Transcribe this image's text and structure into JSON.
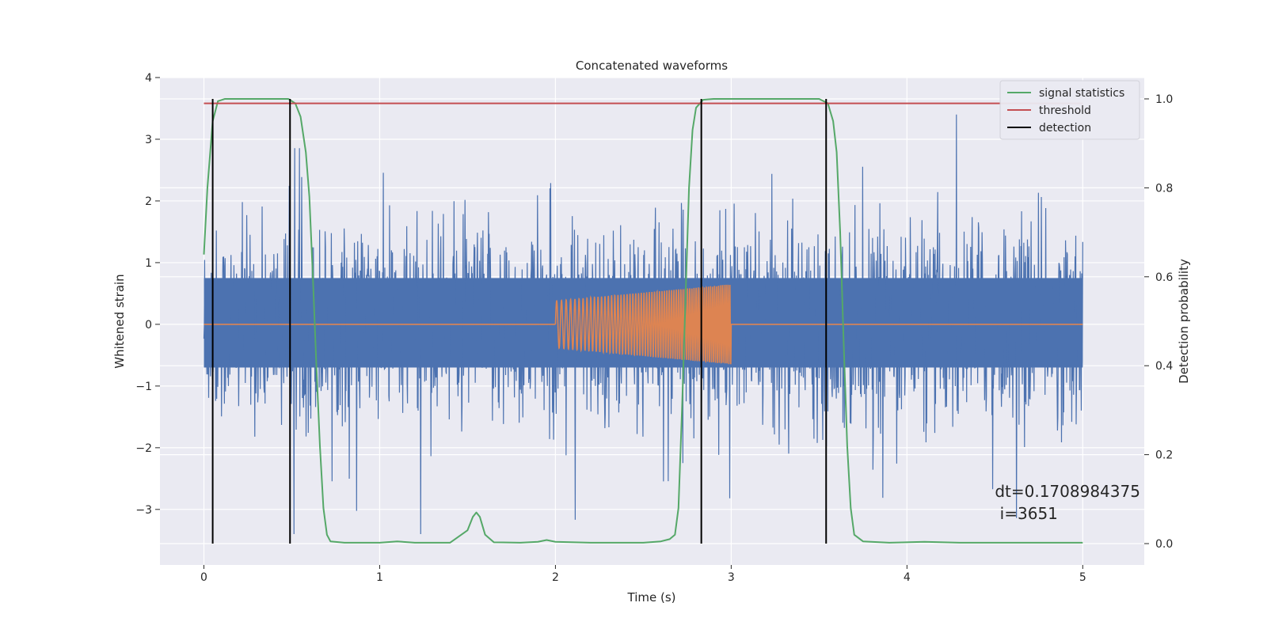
{
  "chart_data": {
    "type": "line",
    "title": "Concatenated waveforms",
    "xlabel": "Time (s)",
    "ylabel": "Whitened strain",
    "y2label": "Detection probability",
    "xlim": [
      -0.25,
      5.35
    ],
    "ylim": [
      -3.9,
      4.0
    ],
    "y2lim": [
      -0.048,
      1.048
    ],
    "x_ticks": [
      0,
      1,
      2,
      3,
      4,
      5
    ],
    "y_ticks": [
      -3,
      -2,
      -1,
      0,
      1,
      2,
      3,
      4
    ],
    "y2_ticks": [
      0.0,
      0.2,
      0.4,
      0.6,
      0.8,
      1.0
    ],
    "grid": true,
    "legend_position": "top-right",
    "colors": {
      "strain": "#4c72b0",
      "injection": "#dd8452",
      "signal_statistics": "#55a868",
      "threshold": "#c44e52",
      "detection": "#000000",
      "background": "#eaeaf2"
    },
    "series": [
      {
        "name": "signal statistics",
        "axis": "right",
        "x": [
          0.0,
          0.02,
          0.05,
          0.08,
          0.12,
          0.2,
          0.4,
          0.48,
          0.52,
          0.55,
          0.58,
          0.6,
          0.62,
          0.64,
          0.66,
          0.68,
          0.7,
          0.72,
          0.8,
          1.0,
          1.1,
          1.2,
          1.4,
          1.5,
          1.53,
          1.55,
          1.57,
          1.6,
          1.65,
          1.8,
          1.9,
          1.95,
          2.0,
          2.2,
          2.5,
          2.6,
          2.65,
          2.68,
          2.7,
          2.72,
          2.74,
          2.76,
          2.78,
          2.8,
          2.84,
          2.9,
          3.0,
          3.3,
          3.5,
          3.55,
          3.58,
          3.6,
          3.62,
          3.64,
          3.66,
          3.68,
          3.7,
          3.75,
          3.9,
          4.1,
          4.3,
          5.0
        ],
        "values": [
          0.65,
          0.8,
          0.95,
          0.995,
          1.0,
          1.0,
          1.0,
          1.0,
          0.99,
          0.96,
          0.88,
          0.78,
          0.6,
          0.4,
          0.22,
          0.08,
          0.02,
          0.005,
          0.002,
          0.002,
          0.005,
          0.002,
          0.002,
          0.03,
          0.06,
          0.07,
          0.06,
          0.02,
          0.003,
          0.002,
          0.004,
          0.008,
          0.004,
          0.002,
          0.002,
          0.005,
          0.01,
          0.02,
          0.08,
          0.3,
          0.55,
          0.8,
          0.93,
          0.98,
          0.998,
          1.0,
          1.0,
          1.0,
          1.0,
          0.99,
          0.95,
          0.88,
          0.7,
          0.45,
          0.22,
          0.08,
          0.02,
          0.005,
          0.002,
          0.004,
          0.002,
          0.002
        ]
      },
      {
        "name": "threshold",
        "axis": "right",
        "x": [
          0.0,
          5.0
        ],
        "values": [
          0.99,
          0.99
        ]
      },
      {
        "name": "detection",
        "axis": "right",
        "type": "vlines",
        "x": [
          0.05,
          0.49,
          2.83,
          3.54
        ],
        "ymin": 0.0,
        "ymax": 1.0
      }
    ],
    "strain_envelope": {
      "axis": "left",
      "dense_band": [
        -0.7,
        0.75
      ],
      "typical_peak": 2.2,
      "max_peak": 3.4
    },
    "injection_envelope": {
      "axis": "left",
      "x": [
        2.0,
        3.0
      ],
      "amplitude_start": 0.38,
      "amplitude_end": 0.65
    },
    "annotation": {
      "line1": "dt=0.1708984375",
      "line2": " i=3651",
      "x": 4.5,
      "y": -2.8
    }
  }
}
